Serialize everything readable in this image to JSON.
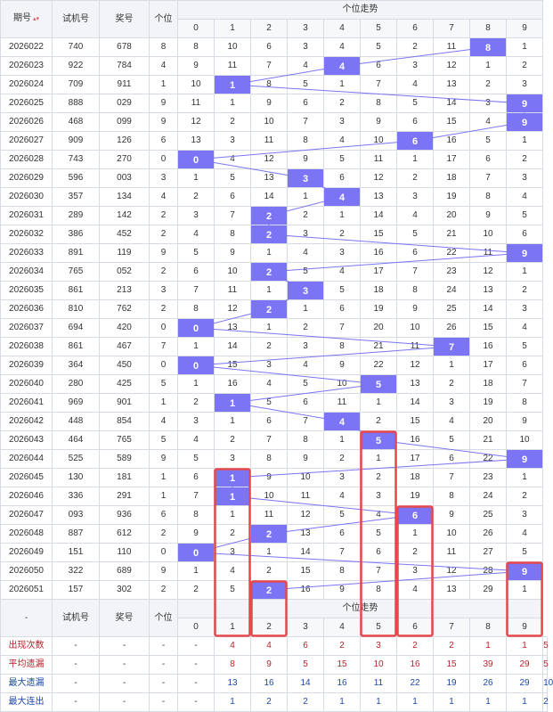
{
  "header": {
    "period": "期号",
    "sort_glyph": "▴▾",
    "test": "试机号",
    "prize": "奖号",
    "units": "个位",
    "trend": "个位走势",
    "digits": [
      "0",
      "1",
      "2",
      "3",
      "4",
      "5",
      "6",
      "7",
      "8",
      "9"
    ]
  },
  "footer_header": {
    "dash": "-",
    "test": "试机号",
    "prize": "奖号",
    "units": "个位",
    "trend": "个位走势",
    "digits": [
      "0",
      "1",
      "2",
      "3",
      "4",
      "5",
      "6",
      "7",
      "8",
      "9"
    ]
  },
  "stats": [
    {
      "label": "出现次数",
      "cls": "stat-red",
      "dash": "-",
      "values": [
        "4",
        "4",
        "6",
        "2",
        "3",
        "2",
        "2",
        "1",
        "1",
        "5"
      ]
    },
    {
      "label": "平均遗漏",
      "cls": "stat-red",
      "dash": "-",
      "values": [
        "8",
        "9",
        "5",
        "15",
        "10",
        "16",
        "15",
        "39",
        "29",
        "5"
      ]
    },
    {
      "label": "最大遗漏",
      "cls": "stat-blue",
      "dash": "-",
      "values": [
        "13",
        "16",
        "14",
        "16",
        "11",
        "22",
        "19",
        "26",
        "29",
        "10"
      ]
    },
    {
      "label": "最大连出",
      "cls": "stat-blue",
      "dash": "-",
      "values": [
        "1",
        "2",
        "2",
        "1",
        "1",
        "1",
        "1",
        "1",
        "1",
        "2"
      ]
    }
  ],
  "colors": {
    "hit": "#7b74f5",
    "line": "#7b74f5",
    "box": "#e5484d"
  },
  "chart_data": {
    "type": "table",
    "rows": [
      {
        "period": "2026022",
        "test": "740",
        "prize": "678",
        "unit": "8",
        "miss": [
          "8",
          "10",
          "6",
          "3",
          "4",
          "5",
          "2",
          "11",
          "8",
          "1"
        ]
      },
      {
        "period": "2026023",
        "test": "922",
        "prize": "784",
        "unit": "4",
        "miss": [
          "9",
          "11",
          "7",
          "4",
          "4",
          "6",
          "3",
          "12",
          "1",
          "2"
        ]
      },
      {
        "period": "2026024",
        "test": "709",
        "prize": "911",
        "unit": "1",
        "miss": [
          "10",
          "1",
          "8",
          "5",
          "1",
          "7",
          "4",
          "13",
          "2",
          "3"
        ]
      },
      {
        "period": "2026025",
        "test": "888",
        "prize": "029",
        "unit": "9",
        "miss": [
          "11",
          "1",
          "9",
          "6",
          "2",
          "8",
          "5",
          "14",
          "3",
          "9"
        ]
      },
      {
        "period": "2026026",
        "test": "468",
        "prize": "099",
        "unit": "9",
        "miss": [
          "12",
          "2",
          "10",
          "7",
          "3",
          "9",
          "6",
          "15",
          "4",
          "9"
        ]
      },
      {
        "period": "2026027",
        "test": "909",
        "prize": "126",
        "unit": "6",
        "miss": [
          "13",
          "3",
          "11",
          "8",
          "4",
          "10",
          "6",
          "16",
          "5",
          "1"
        ]
      },
      {
        "period": "2026028",
        "test": "743",
        "prize": "270",
        "unit": "0",
        "miss": [
          "0",
          "4",
          "12",
          "9",
          "5",
          "11",
          "1",
          "17",
          "6",
          "2"
        ]
      },
      {
        "period": "2026029",
        "test": "596",
        "prize": "003",
        "unit": "3",
        "miss": [
          "1",
          "5",
          "13",
          "3",
          "6",
          "12",
          "2",
          "18",
          "7",
          "3"
        ]
      },
      {
        "period": "2026030",
        "test": "357",
        "prize": "134",
        "unit": "4",
        "miss": [
          "2",
          "6",
          "14",
          "1",
          "4",
          "13",
          "3",
          "19",
          "8",
          "4"
        ]
      },
      {
        "period": "2026031",
        "test": "289",
        "prize": "142",
        "unit": "2",
        "miss": [
          "3",
          "7",
          "2",
          "2",
          "1",
          "14",
          "4",
          "20",
          "9",
          "5"
        ]
      },
      {
        "period": "2026032",
        "test": "386",
        "prize": "452",
        "unit": "2",
        "miss": [
          "4",
          "8",
          "2",
          "3",
          "2",
          "15",
          "5",
          "21",
          "10",
          "6"
        ]
      },
      {
        "period": "2026033",
        "test": "891",
        "prize": "119",
        "unit": "9",
        "miss": [
          "5",
          "9",
          "1",
          "4",
          "3",
          "16",
          "6",
          "22",
          "11",
          "9"
        ]
      },
      {
        "period": "2026034",
        "test": "765",
        "prize": "052",
        "unit": "2",
        "miss": [
          "6",
          "10",
          "2",
          "5",
          "4",
          "17",
          "7",
          "23",
          "12",
          "1"
        ]
      },
      {
        "period": "2026035",
        "test": "861",
        "prize": "213",
        "unit": "3",
        "miss": [
          "7",
          "11",
          "1",
          "3",
          "5",
          "18",
          "8",
          "24",
          "13",
          "2"
        ]
      },
      {
        "period": "2026036",
        "test": "810",
        "prize": "762",
        "unit": "2",
        "miss": [
          "8",
          "12",
          "2",
          "1",
          "6",
          "19",
          "9",
          "25",
          "14",
          "3"
        ]
      },
      {
        "period": "2026037",
        "test": "694",
        "prize": "420",
        "unit": "0",
        "miss": [
          "0",
          "13",
          "1",
          "2",
          "7",
          "20",
          "10",
          "26",
          "15",
          "4"
        ]
      },
      {
        "period": "2026038",
        "test": "861",
        "prize": "467",
        "unit": "7",
        "miss": [
          "1",
          "14",
          "2",
          "3",
          "8",
          "21",
          "11",
          "7",
          "16",
          "5"
        ]
      },
      {
        "period": "2026039",
        "test": "364",
        "prize": "450",
        "unit": "0",
        "miss": [
          "0",
          "15",
          "3",
          "4",
          "9",
          "22",
          "12",
          "1",
          "17",
          "6"
        ]
      },
      {
        "period": "2026040",
        "test": "280",
        "prize": "425",
        "unit": "5",
        "miss": [
          "1",
          "16",
          "4",
          "5",
          "10",
          "5",
          "13",
          "2",
          "18",
          "7"
        ]
      },
      {
        "period": "2026041",
        "test": "969",
        "prize": "901",
        "unit": "1",
        "miss": [
          "2",
          "1",
          "5",
          "6",
          "11",
          "1",
          "14",
          "3",
          "19",
          "8"
        ]
      },
      {
        "period": "2026042",
        "test": "448",
        "prize": "854",
        "unit": "4",
        "miss": [
          "3",
          "1",
          "6",
          "7",
          "4",
          "2",
          "15",
          "4",
          "20",
          "9"
        ]
      },
      {
        "period": "2026043",
        "test": "464",
        "prize": "765",
        "unit": "5",
        "miss": [
          "4",
          "2",
          "7",
          "8",
          "1",
          "5",
          "16",
          "5",
          "21",
          "10"
        ]
      },
      {
        "period": "2026044",
        "test": "525",
        "prize": "589",
        "unit": "9",
        "miss": [
          "5",
          "3",
          "8",
          "9",
          "2",
          "1",
          "17",
          "6",
          "22",
          "9"
        ]
      },
      {
        "period": "2026045",
        "test": "130",
        "prize": "181",
        "unit": "1",
        "miss": [
          "6",
          "1",
          "9",
          "10",
          "3",
          "2",
          "18",
          "7",
          "23",
          "1"
        ]
      },
      {
        "period": "2026046",
        "test": "336",
        "prize": "291",
        "unit": "1",
        "miss": [
          "7",
          "1",
          "10",
          "11",
          "4",
          "3",
          "19",
          "8",
          "24",
          "2"
        ]
      },
      {
        "period": "2026047",
        "test": "093",
        "prize": "936",
        "unit": "6",
        "miss": [
          "8",
          "1",
          "11",
          "12",
          "5",
          "4",
          "6",
          "9",
          "25",
          "3"
        ]
      },
      {
        "period": "2026048",
        "test": "887",
        "prize": "612",
        "unit": "2",
        "miss": [
          "9",
          "2",
          "2",
          "13",
          "6",
          "5",
          "1",
          "10",
          "26",
          "4"
        ]
      },
      {
        "period": "2026049",
        "test": "151",
        "prize": "110",
        "unit": "0",
        "miss": [
          "0",
          "3",
          "1",
          "14",
          "7",
          "6",
          "2",
          "11",
          "27",
          "5"
        ]
      },
      {
        "period": "2026050",
        "test": "322",
        "prize": "689",
        "unit": "9",
        "miss": [
          "1",
          "4",
          "2",
          "15",
          "8",
          "7",
          "3",
          "12",
          "28",
          "9"
        ]
      },
      {
        "period": "2026051",
        "test": "157",
        "prize": "302",
        "unit": "2",
        "miss": [
          "2",
          "5",
          "2",
          "16",
          "9",
          "8",
          "4",
          "13",
          "29",
          "1"
        ]
      }
    ],
    "highlight_columns": [
      "1",
      "2",
      "5",
      "6",
      "9"
    ]
  }
}
